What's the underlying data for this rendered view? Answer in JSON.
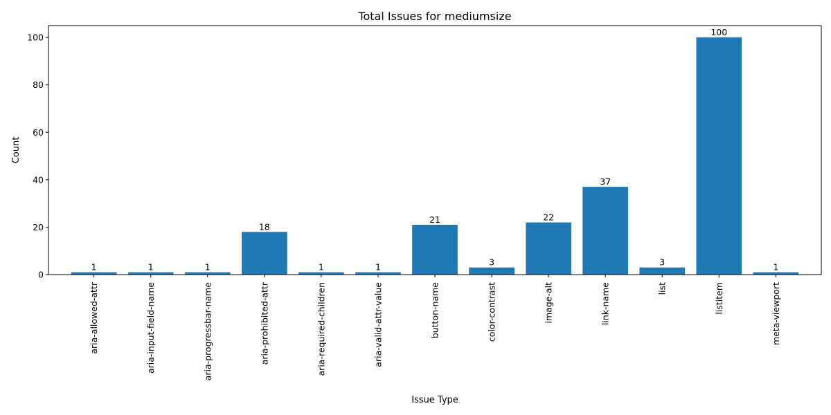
{
  "chart_data": {
    "type": "bar",
    "title": "Total Issues for mediumsize",
    "xlabel": "Issue Type",
    "ylabel": "Count",
    "categories": [
      "aria-allowed-attr",
      "aria-input-field-name",
      "aria-progressbar-name",
      "aria-prohibited-attr",
      "aria-required-children",
      "aria-valid-attr-value",
      "button-name",
      "color-contrast",
      "image-alt",
      "link-name",
      "list",
      "listitem",
      "meta-viewport"
    ],
    "values": [
      1,
      1,
      1,
      18,
      1,
      1,
      21,
      3,
      22,
      37,
      3,
      100,
      1
    ],
    "ylim": [
      0,
      105
    ],
    "yticks": [
      0,
      20,
      40,
      60,
      80,
      100
    ],
    "bar_color": "#1f77b4",
    "grid": false,
    "legend": "none"
  }
}
